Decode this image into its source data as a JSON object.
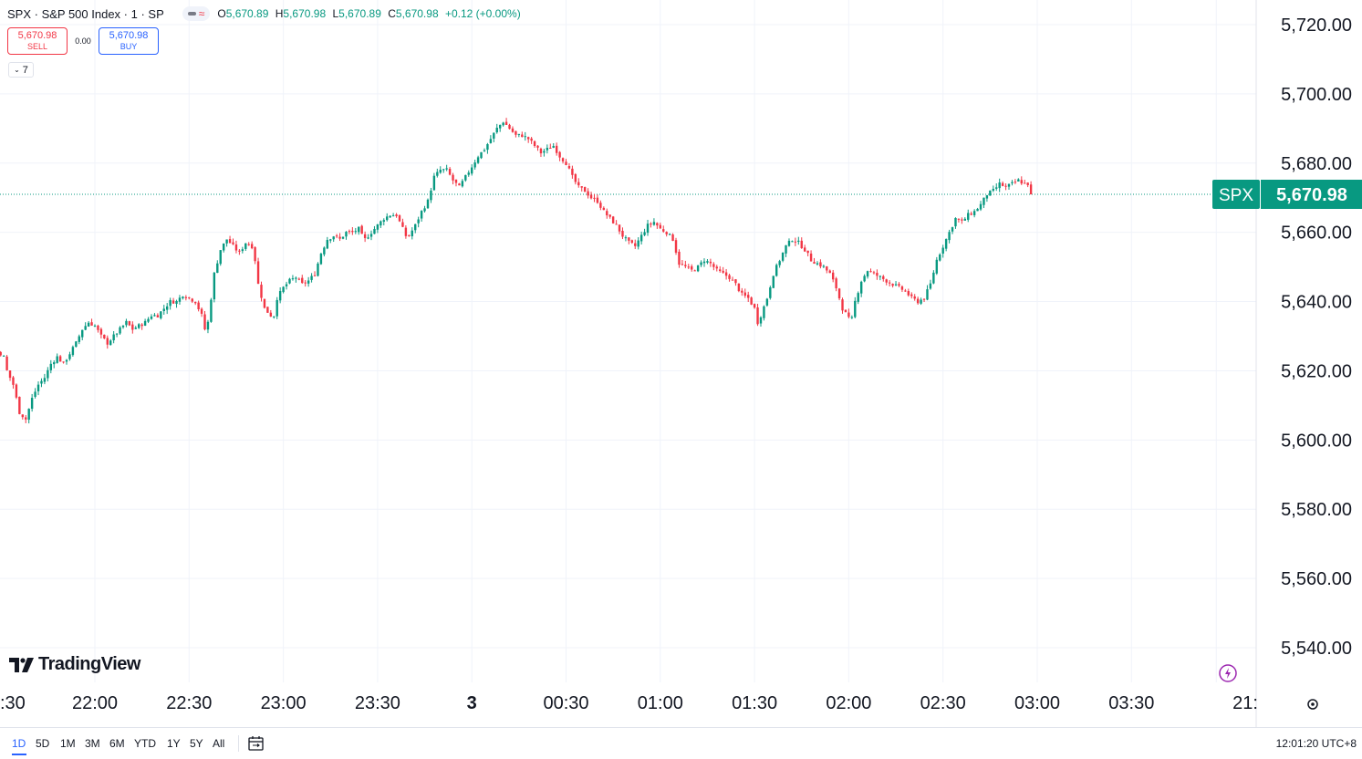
{
  "header": {
    "title": "SPX · S&P 500 Index · 1 · SP",
    "ohlc": [
      {
        "label": "O",
        "value": "5,670.89"
      },
      {
        "label": "H",
        "value": "5,670.98"
      },
      {
        "label": "L",
        "value": "5,670.89"
      },
      {
        "label": "C",
        "value": "5,670.98"
      }
    ],
    "change": "+0.12 (+0.00%)"
  },
  "trade": {
    "sell_price": "5,670.98",
    "sell_label": "SELL",
    "spread": "0.00",
    "buy_price": "5,670.98",
    "buy_label": "BUY"
  },
  "indicators_toggle": "7",
  "brand": "TradingView",
  "bottom_bar": {
    "ranges": [
      "1D",
      "5D",
      "1M",
      "3M",
      "6M",
      "YTD",
      "1Y",
      "5Y",
      "All"
    ],
    "active_range": "1D",
    "clock": "12:01:20 UTC+8"
  },
  "colors": {
    "up": "#089981",
    "down": "#f23645",
    "grid": "#f0f3fa",
    "accent": "#2962ff",
    "last_price_bg": "#089981",
    "bolt": "#9c27b0"
  },
  "icons": [
    "calendar-range-icon",
    "bolt-icon",
    "gear-icon",
    "tradingview-logo-icon",
    "chevron-down-icon"
  ],
  "chart_data": {
    "type": "candlestick",
    "symbol": "SPX",
    "last_price": 5670.98,
    "last_price_label": "5,670.98",
    "ylim": [
      5530,
      5730
    ],
    "y_ticks": [
      5540,
      5560,
      5580,
      5600,
      5620,
      5640,
      5660,
      5680,
      5700,
      5720
    ],
    "y_tick_labels": [
      "5,540.00",
      "5,560.00",
      "5,580.00",
      "5,600.00",
      "5,620.00",
      "5,640.00",
      "5,660.00",
      "5,680.00",
      "5,700.00",
      "5,720.00"
    ],
    "x_tick_labels": [
      ":30",
      "22:00",
      "22:30",
      "23:00",
      "23:30",
      "3",
      "00:30",
      "01:00",
      "01:30",
      "02:00",
      "02:30",
      "03:00",
      "03:30",
      "21:"
    ],
    "x_tick_bold": [
      false,
      false,
      false,
      false,
      false,
      true,
      false,
      false,
      false,
      false,
      false,
      false,
      false,
      false
    ],
    "x_tick_minutes": [
      -60,
      0,
      30,
      60,
      90,
      120,
      150,
      180,
      210,
      240,
      270,
      300,
      330,
      357
    ],
    "x_start_minute": -62,
    "close_path": [
      [
        -61,
        5575
      ],
      [
        -60,
        5580
      ],
      [
        -58,
        5590
      ],
      [
        -56,
        5595
      ],
      [
        -54,
        5605
      ],
      [
        -52,
        5610
      ],
      [
        -50,
        5608
      ],
      [
        -48,
        5612
      ],
      [
        -46,
        5615
      ],
      [
        -44,
        5612
      ],
      [
        -42,
        5616
      ],
      [
        -40,
        5618
      ],
      [
        -38,
        5614
      ],
      [
        -36,
        5610
      ],
      [
        -34,
        5612
      ],
      [
        -32,
        5626
      ],
      [
        -30,
        5625
      ],
      [
        -29,
        5624
      ],
      [
        -28,
        5620
      ],
      [
        -26,
        5616
      ],
      [
        -24,
        5608
      ],
      [
        -22,
        5606
      ],
      [
        -20,
        5612
      ],
      [
        -18,
        5616
      ],
      [
        -16,
        5618
      ],
      [
        -14,
        5622
      ],
      [
        -12,
        5624
      ],
      [
        -10,
        5622
      ],
      [
        -8,
        5625
      ],
      [
        -6,
        5628
      ],
      [
        -4,
        5632
      ],
      [
        -2,
        5634
      ],
      [
        0,
        5633
      ],
      [
        2,
        5630
      ],
      [
        4,
        5628
      ],
      [
        6,
        5630
      ],
      [
        8,
        5632
      ],
      [
        10,
        5634
      ],
      [
        12,
        5632
      ],
      [
        14,
        5633
      ],
      [
        16,
        5634
      ],
      [
        18,
        5636
      ],
      [
        20,
        5636
      ],
      [
        22,
        5638
      ],
      [
        24,
        5640
      ],
      [
        26,
        5640
      ],
      [
        28,
        5642
      ],
      [
        30,
        5641
      ],
      [
        32,
        5640
      ],
      [
        34,
        5636
      ],
      [
        35,
        5632
      ],
      [
        36,
        5634
      ],
      [
        38,
        5648
      ],
      [
        40,
        5655
      ],
      [
        42,
        5658
      ],
      [
        44,
        5656
      ],
      [
        46,
        5654
      ],
      [
        48,
        5657
      ],
      [
        50,
        5656
      ],
      [
        51,
        5652
      ],
      [
        52,
        5645
      ],
      [
        54,
        5638
      ],
      [
        56,
        5636
      ],
      [
        57,
        5636
      ],
      [
        58,
        5641
      ],
      [
        60,
        5644
      ],
      [
        62,
        5646
      ],
      [
        64,
        5647
      ],
      [
        66,
        5645
      ],
      [
        68,
        5646
      ],
      [
        70,
        5648
      ],
      [
        72,
        5654
      ],
      [
        74,
        5658
      ],
      [
        76,
        5659
      ],
      [
        78,
        5658
      ],
      [
        80,
        5660
      ],
      [
        82,
        5660
      ],
      [
        84,
        5661
      ],
      [
        85,
        5659
      ],
      [
        86,
        5658
      ],
      [
        88,
        5660
      ],
      [
        90,
        5662
      ],
      [
        92,
        5664
      ],
      [
        94,
        5665
      ],
      [
        96,
        5665
      ],
      [
        98,
        5661
      ],
      [
        99,
        5659
      ],
      [
        100,
        5659
      ],
      [
        102,
        5662
      ],
      [
        104,
        5666
      ],
      [
        106,
        5669
      ],
      [
        108,
        5676
      ],
      [
        110,
        5678
      ],
      [
        112,
        5678
      ],
      [
        114,
        5675
      ],
      [
        116,
        5673
      ],
      [
        118,
        5676
      ],
      [
        120,
        5679
      ],
      [
        122,
        5682
      ],
      [
        124,
        5684
      ],
      [
        126,
        5687
      ],
      [
        128,
        5690
      ],
      [
        130,
        5692
      ],
      [
        132,
        5690
      ],
      [
        134,
        5688
      ],
      [
        136,
        5688
      ],
      [
        138,
        5687
      ],
      [
        140,
        5685
      ],
      [
        142,
        5683
      ],
      [
        144,
        5684
      ],
      [
        146,
        5685
      ],
      [
        148,
        5682
      ],
      [
        150,
        5680
      ],
      [
        152,
        5676
      ],
      [
        154,
        5673
      ],
      [
        156,
        5672
      ],
      [
        158,
        5670
      ],
      [
        160,
        5669
      ],
      [
        162,
        5666
      ],
      [
        164,
        5664
      ],
      [
        166,
        5662
      ],
      [
        168,
        5659
      ],
      [
        170,
        5657
      ],
      [
        172,
        5656
      ],
      [
        174,
        5659
      ],
      [
        176,
        5662
      ],
      [
        178,
        5663
      ],
      [
        180,
        5661
      ],
      [
        182,
        5660
      ],
      [
        184,
        5658
      ],
      [
        186,
        5651
      ],
      [
        188,
        5650
      ],
      [
        190,
        5649
      ],
      [
        192,
        5650
      ],
      [
        194,
        5652
      ],
      [
        196,
        5651
      ],
      [
        198,
        5649
      ],
      [
        200,
        5648
      ],
      [
        202,
        5647
      ],
      [
        204,
        5645
      ],
      [
        206,
        5642
      ],
      [
        208,
        5641
      ],
      [
        210,
        5638
      ],
      [
        211,
        5634
      ],
      [
        212,
        5636
      ],
      [
        214,
        5641
      ],
      [
        216,
        5648
      ],
      [
        218,
        5652
      ],
      [
        220,
        5656
      ],
      [
        222,
        5658
      ],
      [
        224,
        5657
      ],
      [
        226,
        5655
      ],
      [
        228,
        5652
      ],
      [
        230,
        5651
      ],
      [
        232,
        5650
      ],
      [
        234,
        5648
      ],
      [
        236,
        5644
      ],
      [
        238,
        5638
      ],
      [
        240,
        5635
      ],
      [
        241,
        5635
      ],
      [
        242,
        5640
      ],
      [
        244,
        5646
      ],
      [
        246,
        5649
      ],
      [
        248,
        5648
      ],
      [
        250,
        5647
      ],
      [
        252,
        5646
      ],
      [
        254,
        5645
      ],
      [
        256,
        5644
      ],
      [
        258,
        5643
      ],
      [
        260,
        5641
      ],
      [
        262,
        5640
      ],
      [
        264,
        5641
      ],
      [
        266,
        5645
      ],
      [
        268,
        5652
      ],
      [
        270,
        5656
      ],
      [
        272,
        5660
      ],
      [
        274,
        5664
      ],
      [
        276,
        5663
      ],
      [
        278,
        5665
      ],
      [
        280,
        5666
      ],
      [
        282,
        5668
      ],
      [
        284,
        5671
      ],
      [
        286,
        5672
      ],
      [
        288,
        5674
      ],
      [
        290,
        5673
      ],
      [
        292,
        5674
      ],
      [
        294,
        5675
      ],
      [
        296,
        5674
      ],
      [
        297,
        5674
      ],
      [
        298,
        5675
      ]
    ]
  }
}
